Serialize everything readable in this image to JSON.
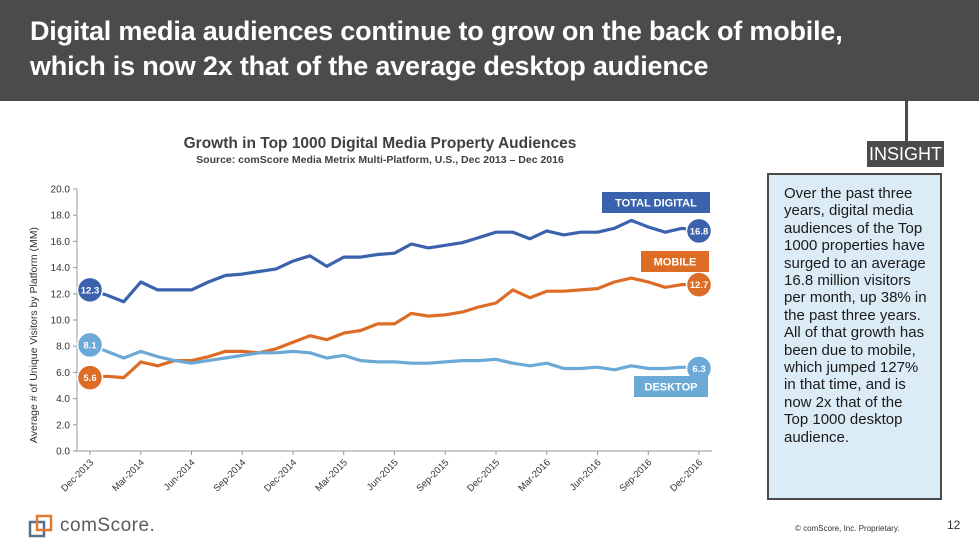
{
  "header": {
    "title_line1": "Digital media audiences continue to grow on the back of mobile,",
    "title_line2": "which is now 2x that of the average desktop audience"
  },
  "insight": {
    "tab_label": "INSIGHT",
    "text": "Over the past three years, digital media audiences of the Top 1000 properties have surged to an average 16.8 million visitors per month, up 38% in the past three years. All of that growth has been due to mobile, which jumped 127% in that time, and is now 2x that of the Top 1000 desktop audience."
  },
  "footer": {
    "logo_text": "comScore.",
    "copyright": "© comScore, Inc. Proprietary.",
    "page_number": "12"
  },
  "colors": {
    "total": "#3a62ad",
    "mobile": "#dd6c27",
    "desktop": "#6ba9d6",
    "header": "#4b4b4b",
    "insight_bg": "#dcecf6"
  },
  "chart_data": {
    "type": "line",
    "title": "Growth in Top 1000 Digital Media Property Audiences",
    "subtitle": "Source: comScore Media Metrix Multi-Platform, U.S., Dec 2013 – Dec 2016",
    "ylabel": "Average # of Unique Visitors by Platform (MM)",
    "xlabel": "",
    "ylim": [
      0,
      20
    ],
    "yticks": [
      "0.0",
      "2.0",
      "4.0",
      "6.0",
      "8.0",
      "10.0",
      "12.0",
      "14.0",
      "16.0",
      "18.0",
      "20.0"
    ],
    "xtick_labels": [
      "Dec-2013",
      "Mar-2014",
      "Jun-2014",
      "Sep-2014",
      "Dec-2014",
      "Mar-2015",
      "Jun-2015",
      "Sep-2015",
      "Dec-2015",
      "Mar-2016",
      "Jun-2016",
      "Sep-2016",
      "Dec-2016"
    ],
    "x": [
      "Dec-2013",
      "Jan-2014",
      "Feb-2014",
      "Mar-2014",
      "Apr-2014",
      "May-2014",
      "Jun-2014",
      "Jul-2014",
      "Aug-2014",
      "Sep-2014",
      "Oct-2014",
      "Nov-2014",
      "Dec-2014",
      "Jan-2015",
      "Feb-2015",
      "Mar-2015",
      "Apr-2015",
      "May-2015",
      "Jun-2015",
      "Jul-2015",
      "Aug-2015",
      "Sep-2015",
      "Oct-2015",
      "Nov-2015",
      "Dec-2015",
      "Jan-2016",
      "Feb-2016",
      "Mar-2016",
      "Apr-2016",
      "May-2016",
      "Jun-2016",
      "Jul-2016",
      "Aug-2016",
      "Sep-2016",
      "Oct-2016",
      "Nov-2016",
      "Dec-2016"
    ],
    "grid": false,
    "series": [
      {
        "name": "TOTAL DIGITAL",
        "color": "#3a62ad",
        "end_label": "16.8",
        "start_label": "12.3",
        "values": [
          12.3,
          11.9,
          11.4,
          12.9,
          12.3,
          12.3,
          12.3,
          12.9,
          13.4,
          13.5,
          13.7,
          13.9,
          14.5,
          14.9,
          14.1,
          14.8,
          14.8,
          15.0,
          15.1,
          15.8,
          15.5,
          15.7,
          15.9,
          16.3,
          16.7,
          16.7,
          16.2,
          16.8,
          16.5,
          16.7,
          16.7,
          17.0,
          17.6,
          17.1,
          16.7,
          17.0,
          16.8
        ]
      },
      {
        "name": "MOBILE",
        "color": "#dd6c27",
        "end_label": "12.7",
        "start_label": "5.6",
        "values": [
          5.6,
          5.7,
          5.6,
          6.8,
          6.5,
          6.9,
          6.9,
          7.2,
          7.6,
          7.6,
          7.5,
          7.8,
          8.3,
          8.8,
          8.5,
          9.0,
          9.2,
          9.7,
          9.7,
          10.5,
          10.3,
          10.4,
          10.6,
          11.0,
          11.3,
          12.3,
          11.7,
          12.2,
          12.2,
          12.3,
          12.4,
          12.9,
          13.2,
          12.9,
          12.5,
          12.7,
          12.7
        ]
      },
      {
        "name": "DESKTOP",
        "color": "#6ba9d6",
        "end_label": "6.3",
        "start_label": "8.1",
        "values": [
          8.1,
          7.6,
          7.1,
          7.6,
          7.2,
          6.9,
          6.7,
          6.9,
          7.1,
          7.3,
          7.5,
          7.5,
          7.6,
          7.5,
          7.1,
          7.3,
          6.9,
          6.8,
          6.8,
          6.7,
          6.7,
          6.8,
          6.9,
          6.9,
          7.0,
          6.7,
          6.5,
          6.7,
          6.3,
          6.3,
          6.4,
          6.2,
          6.5,
          6.3,
          6.3,
          6.4,
          6.3
        ]
      }
    ]
  }
}
